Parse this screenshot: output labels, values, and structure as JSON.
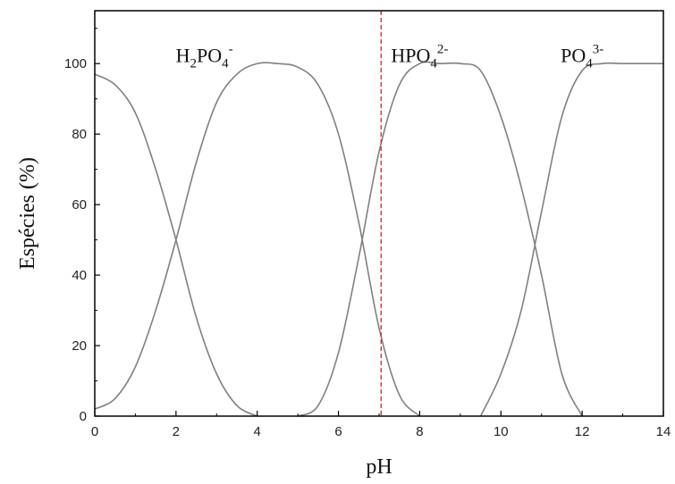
{
  "chart_data": {
    "type": "line",
    "title": "",
    "xlabel": "pH",
    "ylabel": "Espécies (%)",
    "xlim": [
      0,
      14
    ],
    "ylim": [
      0,
      115
    ],
    "xticks": [
      0,
      2,
      4,
      6,
      8,
      10,
      12,
      14
    ],
    "yticks": [
      0,
      20,
      40,
      60,
      80,
      100
    ],
    "grid": false,
    "legend": "none",
    "line_color": "#808080",
    "marker_color": "#e03030",
    "reference_line": {
      "x": 7.05,
      "style": "dashed"
    },
    "series": [
      {
        "x": [
          0,
          0.5,
          1.0,
          1.5,
          2.0,
          2.5,
          3.0,
          3.5,
          4.0
        ],
        "y": [
          97,
          94,
          86,
          70,
          50,
          28,
          12,
          3,
          0
        ]
      },
      {
        "x": [
          0,
          0.5,
          1.0,
          1.5,
          2.0,
          2.5,
          3.0,
          3.5,
          4.0,
          4.5,
          5.0,
          5.5,
          6.0,
          6.5,
          7.0,
          7.5,
          8.0
        ],
        "y": [
          2,
          5,
          14,
          30,
          50,
          72,
          89,
          97,
          100,
          100,
          99,
          94,
          80,
          55,
          25,
          6,
          0
        ]
      },
      {
        "x": [
          5.0,
          5.5,
          6.0,
          6.5,
          7.0,
          7.5,
          8.0,
          8.5,
          9.0,
          9.5,
          10.0,
          10.5,
          11.0,
          11.5,
          12.0
        ],
        "y": [
          0,
          3,
          18,
          45,
          75,
          94,
          100,
          100,
          100,
          98,
          85,
          65,
          40,
          12,
          0
        ]
      },
      {
        "x": [
          9.5,
          10.0,
          10.5,
          11.0,
          11.5,
          12.0,
          12.5,
          13.0,
          13.5,
          14.0
        ],
        "y": [
          0,
          12,
          30,
          58,
          85,
          98,
          100,
          100,
          100,
          100
        ]
      }
    ],
    "annotations": [
      {
        "base": "H",
        "sub1": "2",
        "mid": "PO",
        "sub2": "4",
        "sup": "-",
        "x": 2.7,
        "y": 102,
        "bold": false
      },
      {
        "base": "HPO",
        "sub1": "",
        "mid": "",
        "sub2": "4",
        "sup": "2-",
        "x": 8.0,
        "y": 102,
        "bold": true
      },
      {
        "base": "PO",
        "sub1": "",
        "mid": "",
        "sub2": "4",
        "sup": "3-",
        "x": 12.0,
        "y": 102,
        "bold": false
      }
    ]
  }
}
